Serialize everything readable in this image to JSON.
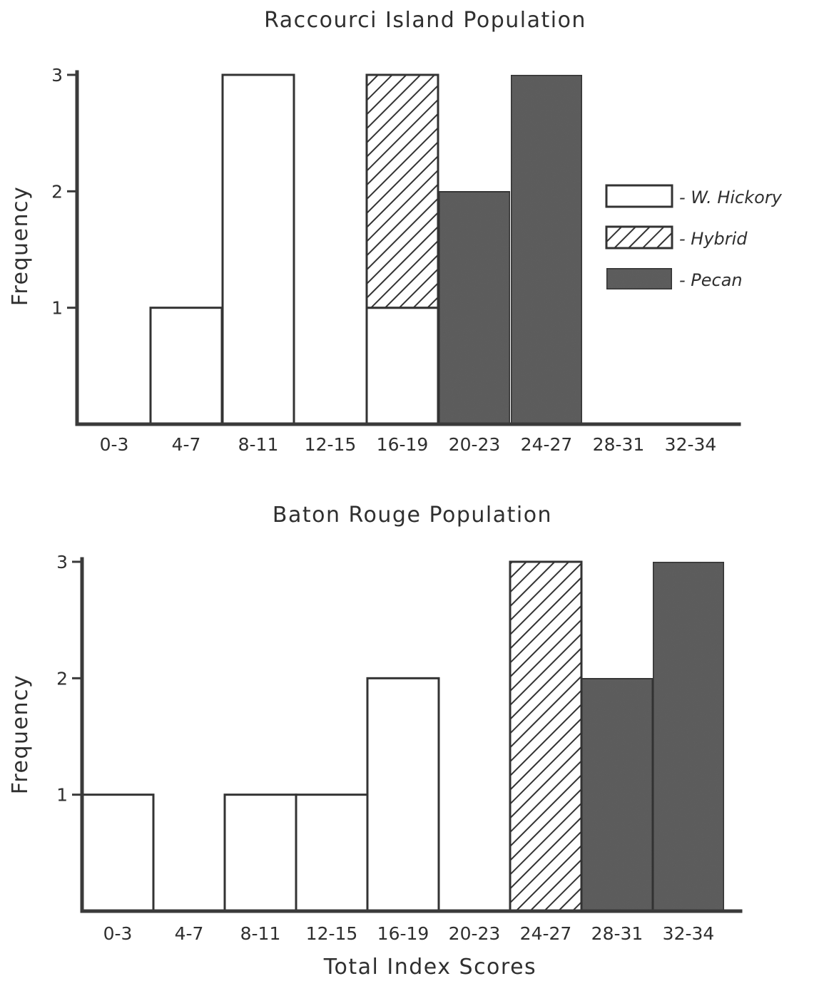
{
  "colors": {
    "W. Hickory": "#ffffff",
    "Hybrid": "#ffffff",
    "Pecan": "#5e5e5e",
    "ink": "#333333"
  },
  "legend": {
    "items": [
      {
        "label": "- W. Hickory",
        "series": "W. Hickory",
        "fill": "white"
      },
      {
        "label": "- Hybrid",
        "series": "Hybrid",
        "fill": "hatch"
      },
      {
        "label": "- Pecan",
        "series": "Pecan",
        "fill": "dark"
      }
    ]
  },
  "chart_data": [
    {
      "type": "bar",
      "stacked": true,
      "title": "Raccourci Island Population",
      "xlabel": "",
      "ylabel": "Frequency",
      "categories": [
        "0-3",
        "4-7",
        "8-11",
        "12-15",
        "16-19",
        "20-23",
        "24-27",
        "28-31",
        "32-34"
      ],
      "series": [
        {
          "name": "W. Hickory",
          "values": [
            0,
            1,
            3,
            0,
            1,
            0,
            0,
            0,
            0
          ]
        },
        {
          "name": "Hybrid",
          "values": [
            0,
            0,
            0,
            0,
            2,
            0,
            0,
            0,
            0
          ]
        },
        {
          "name": "Pecan",
          "values": [
            0,
            0,
            0,
            0,
            0,
            2,
            3,
            0,
            0
          ]
        }
      ],
      "yticks": [
        "1",
        "2",
        "3"
      ],
      "ylim": [
        0,
        3
      ],
      "grid": false,
      "legend": "right"
    },
    {
      "type": "bar",
      "stacked": true,
      "title": "Baton Rouge Population",
      "xlabel": "Total Index Scores",
      "ylabel": "Frequency",
      "categories": [
        "0-3",
        "4-7",
        "8-11",
        "12-15",
        "16-19",
        "20-23",
        "24-27",
        "28-31",
        "32-34"
      ],
      "series": [
        {
          "name": "W. Hickory",
          "values": [
            1,
            0,
            1,
            1,
            2,
            0,
            0,
            0,
            0
          ]
        },
        {
          "name": "Hybrid",
          "values": [
            0,
            0,
            0,
            0,
            0,
            0,
            3,
            0,
            0
          ]
        },
        {
          "name": "Pecan",
          "values": [
            0,
            0,
            0,
            0,
            0,
            0,
            0,
            2,
            3
          ]
        }
      ],
      "yticks": [
        "1",
        "2",
        "3"
      ],
      "ylim": [
        0,
        3
      ],
      "grid": false,
      "legend": "none"
    }
  ]
}
